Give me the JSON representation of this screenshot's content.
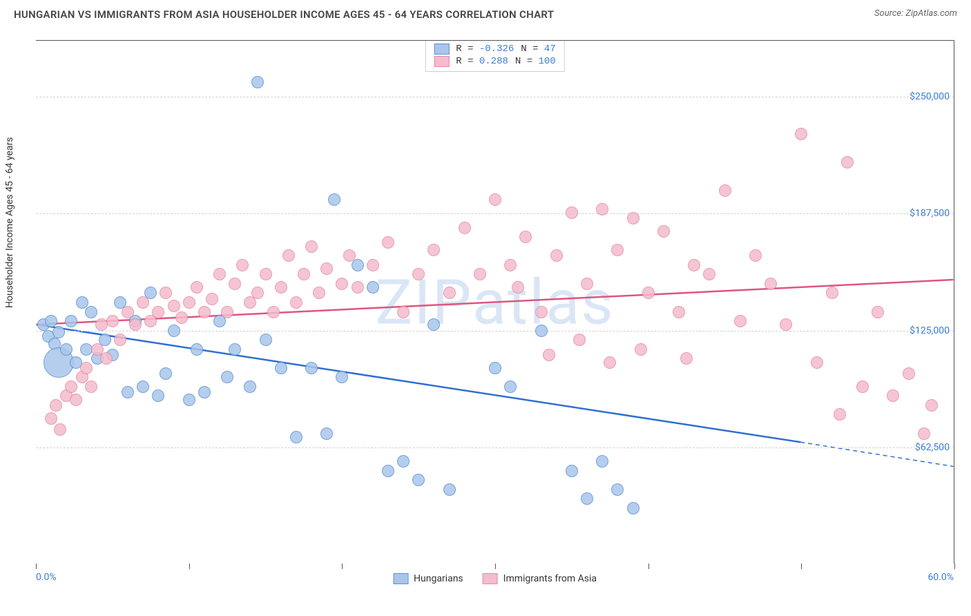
{
  "title": "HUNGARIAN VS IMMIGRANTS FROM ASIA HOUSEHOLDER INCOME AGES 45 - 64 YEARS CORRELATION CHART",
  "source": "Source: ZipAtlas.com",
  "ylabel": "Householder Income Ages 45 - 64 years",
  "watermark": "ZIPatlas",
  "chart": {
    "type": "scatter",
    "xlim": [
      0,
      60
    ],
    "ylim": [
      0,
      280000
    ],
    "xticks": [
      0,
      10,
      20,
      30,
      40,
      50,
      60
    ],
    "xlim_labels": {
      "min": "0.0%",
      "max": "60.0%"
    },
    "yticks": [
      {
        "v": 62500,
        "label": "$62,500"
      },
      {
        "v": 125000,
        "label": "$125,000"
      },
      {
        "v": 187500,
        "label": "$187,500"
      },
      {
        "v": 250000,
        "label": "$250,000"
      }
    ],
    "background_color": "#ffffff",
    "grid_color": "#d0d0d0",
    "border_color": "#555555",
    "point_radius": 9,
    "point_stroke_width": 1.5,
    "point_fill_opacity": 0.35,
    "watermark_color": "#bcd3ef",
    "watermark_opacity": 0.55
  },
  "series": [
    {
      "name": "Hungarians",
      "color_stroke": "#5b8fd6",
      "color_fill": "#a9c6ea",
      "trend_color": "#2f6fd0",
      "R": "-0.326",
      "N": "47",
      "trend": {
        "x1": 0,
        "y1": 128000,
        "x2": 50,
        "y2": 65000,
        "dashed_after_x": 50,
        "x2d": 60,
        "y2d": 52000
      },
      "points": [
        {
          "x": 0.5,
          "y": 128000
        },
        {
          "x": 0.8,
          "y": 122000
        },
        {
          "x": 1.0,
          "y": 130000
        },
        {
          "x": 1.2,
          "y": 118000
        },
        {
          "x": 1.5,
          "y": 108000,
          "r": 22
        },
        {
          "x": 1.5,
          "y": 124000
        },
        {
          "x": 2.0,
          "y": 115000
        },
        {
          "x": 2.3,
          "y": 130000
        },
        {
          "x": 2.6,
          "y": 108000
        },
        {
          "x": 3.0,
          "y": 140000
        },
        {
          "x": 3.3,
          "y": 115000
        },
        {
          "x": 3.6,
          "y": 135000
        },
        {
          "x": 4.0,
          "y": 110000
        },
        {
          "x": 4.5,
          "y": 120000
        },
        {
          "x": 5.0,
          "y": 112000
        },
        {
          "x": 5.5,
          "y": 140000
        },
        {
          "x": 6.0,
          "y": 92000
        },
        {
          "x": 6.5,
          "y": 130000
        },
        {
          "x": 7.0,
          "y": 95000
        },
        {
          "x": 7.5,
          "y": 145000
        },
        {
          "x": 8.0,
          "y": 90000
        },
        {
          "x": 8.5,
          "y": 102000
        },
        {
          "x": 9.0,
          "y": 125000
        },
        {
          "x": 10.0,
          "y": 88000
        },
        {
          "x": 10.5,
          "y": 115000
        },
        {
          "x": 11.0,
          "y": 92000
        },
        {
          "x": 12.0,
          "y": 130000
        },
        {
          "x": 12.5,
          "y": 100000
        },
        {
          "x": 13.0,
          "y": 115000
        },
        {
          "x": 14.0,
          "y": 95000
        },
        {
          "x": 14.5,
          "y": 258000
        },
        {
          "x": 15.0,
          "y": 120000
        },
        {
          "x": 16.0,
          "y": 105000
        },
        {
          "x": 17.0,
          "y": 68000
        },
        {
          "x": 18.0,
          "y": 105000
        },
        {
          "x": 19.0,
          "y": 70000
        },
        {
          "x": 19.5,
          "y": 195000
        },
        {
          "x": 20.0,
          "y": 100000
        },
        {
          "x": 21.0,
          "y": 160000
        },
        {
          "x": 22.0,
          "y": 148000
        },
        {
          "x": 23.0,
          "y": 50000
        },
        {
          "x": 24.0,
          "y": 55000
        },
        {
          "x": 25.0,
          "y": 45000
        },
        {
          "x": 26.0,
          "y": 128000
        },
        {
          "x": 27.0,
          "y": 40000
        },
        {
          "x": 30.0,
          "y": 105000
        },
        {
          "x": 31.0,
          "y": 95000
        },
        {
          "x": 33.0,
          "y": 125000
        },
        {
          "x": 35.0,
          "y": 50000
        },
        {
          "x": 36.0,
          "y": 35000
        },
        {
          "x": 37.0,
          "y": 55000
        },
        {
          "x": 38.0,
          "y": 40000
        },
        {
          "x": 39.0,
          "y": 30000
        }
      ]
    },
    {
      "name": "Immigrants from Asia",
      "color_stroke": "#e48aa6",
      "color_fill": "#f4bccd",
      "trend_color": "#e0547f",
      "R": "0.288",
      "N": "100",
      "trend": {
        "x1": 0,
        "y1": 128000,
        "x2": 60,
        "y2": 152000
      },
      "points": [
        {
          "x": 1.0,
          "y": 78000
        },
        {
          "x": 1.3,
          "y": 85000
        },
        {
          "x": 1.6,
          "y": 72000
        },
        {
          "x": 2.0,
          "y": 90000
        },
        {
          "x": 2.3,
          "y": 95000
        },
        {
          "x": 2.6,
          "y": 88000
        },
        {
          "x": 3.0,
          "y": 100000
        },
        {
          "x": 3.3,
          "y": 105000
        },
        {
          "x": 3.6,
          "y": 95000
        },
        {
          "x": 4.0,
          "y": 115000
        },
        {
          "x": 4.3,
          "y": 128000
        },
        {
          "x": 4.6,
          "y": 110000
        },
        {
          "x": 5.0,
          "y": 130000
        },
        {
          "x": 5.5,
          "y": 120000
        },
        {
          "x": 6.0,
          "y": 135000
        },
        {
          "x": 6.5,
          "y": 128000
        },
        {
          "x": 7.0,
          "y": 140000
        },
        {
          "x": 7.5,
          "y": 130000
        },
        {
          "x": 8.0,
          "y": 135000
        },
        {
          "x": 8.5,
          "y": 145000
        },
        {
          "x": 9.0,
          "y": 138000
        },
        {
          "x": 9.5,
          "y": 132000
        },
        {
          "x": 10.0,
          "y": 140000
        },
        {
          "x": 10.5,
          "y": 148000
        },
        {
          "x": 11.0,
          "y": 135000
        },
        {
          "x": 11.5,
          "y": 142000
        },
        {
          "x": 12.0,
          "y": 155000
        },
        {
          "x": 12.5,
          "y": 135000
        },
        {
          "x": 13.0,
          "y": 150000
        },
        {
          "x": 13.5,
          "y": 160000
        },
        {
          "x": 14.0,
          "y": 140000
        },
        {
          "x": 14.5,
          "y": 145000
        },
        {
          "x": 15.0,
          "y": 155000
        },
        {
          "x": 15.5,
          "y": 135000
        },
        {
          "x": 16.0,
          "y": 148000
        },
        {
          "x": 16.5,
          "y": 165000
        },
        {
          "x": 17.0,
          "y": 140000
        },
        {
          "x": 17.5,
          "y": 155000
        },
        {
          "x": 18.0,
          "y": 170000
        },
        {
          "x": 18.5,
          "y": 145000
        },
        {
          "x": 19.0,
          "y": 158000
        },
        {
          "x": 20.0,
          "y": 150000
        },
        {
          "x": 20.5,
          "y": 165000
        },
        {
          "x": 21.0,
          "y": 148000
        },
        {
          "x": 22.0,
          "y": 160000
        },
        {
          "x": 23.0,
          "y": 172000
        },
        {
          "x": 24.0,
          "y": 135000
        },
        {
          "x": 25.0,
          "y": 155000
        },
        {
          "x": 26.0,
          "y": 168000
        },
        {
          "x": 27.0,
          "y": 145000
        },
        {
          "x": 28.0,
          "y": 180000
        },
        {
          "x": 29.0,
          "y": 155000
        },
        {
          "x": 30.0,
          "y": 195000
        },
        {
          "x": 31.0,
          "y": 160000
        },
        {
          "x": 31.5,
          "y": 148000
        },
        {
          "x": 32.0,
          "y": 175000
        },
        {
          "x": 33.0,
          "y": 135000
        },
        {
          "x": 33.5,
          "y": 112000
        },
        {
          "x": 34.0,
          "y": 165000
        },
        {
          "x": 35.0,
          "y": 188000
        },
        {
          "x": 35.5,
          "y": 120000
        },
        {
          "x": 36.0,
          "y": 150000
        },
        {
          "x": 37.0,
          "y": 190000
        },
        {
          "x": 37.5,
          "y": 108000
        },
        {
          "x": 38.0,
          "y": 168000
        },
        {
          "x": 39.0,
          "y": 185000
        },
        {
          "x": 39.5,
          "y": 115000
        },
        {
          "x": 40.0,
          "y": 145000
        },
        {
          "x": 41.0,
          "y": 178000
        },
        {
          "x": 42.0,
          "y": 135000
        },
        {
          "x": 42.5,
          "y": 110000
        },
        {
          "x": 43.0,
          "y": 160000
        },
        {
          "x": 44.0,
          "y": 155000
        },
        {
          "x": 45.0,
          "y": 200000
        },
        {
          "x": 46.0,
          "y": 130000
        },
        {
          "x": 47.0,
          "y": 165000
        },
        {
          "x": 48.0,
          "y": 150000
        },
        {
          "x": 49.0,
          "y": 128000
        },
        {
          "x": 50.0,
          "y": 230000
        },
        {
          "x": 51.0,
          "y": 108000
        },
        {
          "x": 52.0,
          "y": 145000
        },
        {
          "x": 52.5,
          "y": 80000
        },
        {
          "x": 53.0,
          "y": 215000
        },
        {
          "x": 54.0,
          "y": 95000
        },
        {
          "x": 55.0,
          "y": 135000
        },
        {
          "x": 56.0,
          "y": 90000
        },
        {
          "x": 57.0,
          "y": 102000
        },
        {
          "x": 58.0,
          "y": 70000
        },
        {
          "x": 58.5,
          "y": 85000
        }
      ]
    }
  ]
}
